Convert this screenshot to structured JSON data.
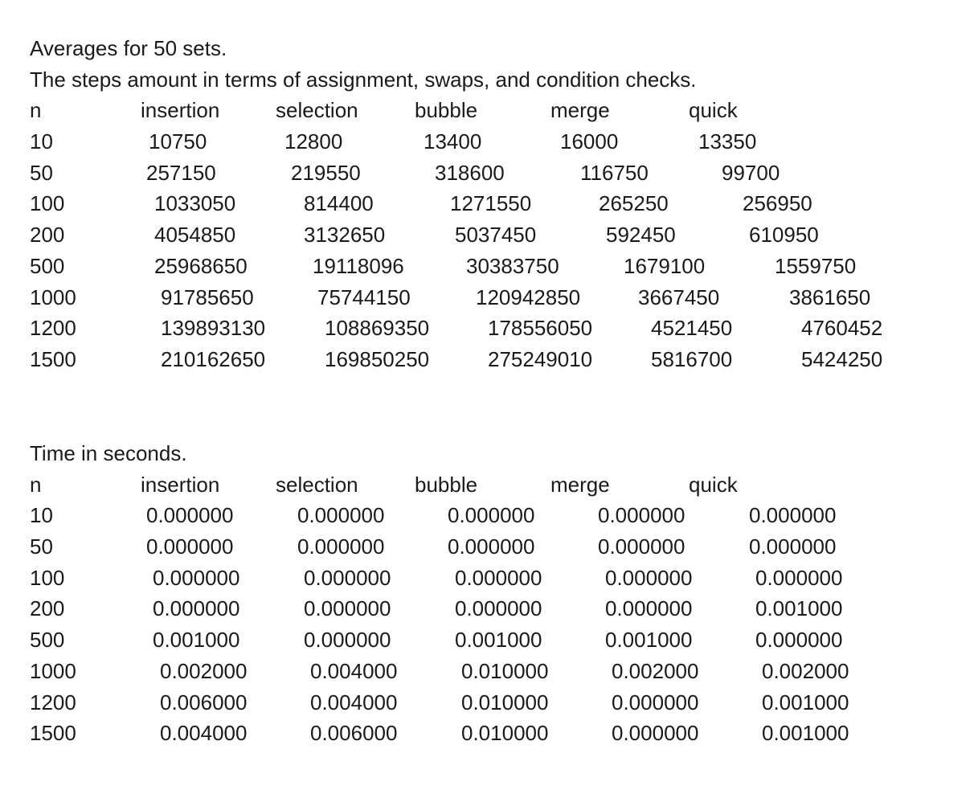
{
  "steps": {
    "title": "Averages for 50 sets.",
    "subtitle": "The steps amount in terms of assignment, swaps, and condition checks.",
    "headers": [
      "n",
      "insertion",
      "selection",
      "bubble",
      "merge",
      "quick"
    ],
    "rows": [
      [
        "10",
        "10750",
        "12800",
        "13400",
        "16000",
        "13350"
      ],
      [
        "50",
        "257150",
        "219550",
        "318600",
        "116750",
        "99700"
      ],
      [
        "100",
        "1033050",
        "814400",
        "1271550",
        "265250",
        "256950"
      ],
      [
        "200",
        "4054850",
        "3132650",
        "5037450",
        "592450",
        "610950"
      ],
      [
        "500",
        "25968650",
        "19118096",
        "30383750",
        "1679100",
        "1559750"
      ],
      [
        "1000",
        "91785650",
        "75744150",
        "120942850",
        "3667450",
        "3861650"
      ],
      [
        "1200",
        "139893130",
        "108869350",
        "178556050",
        "4521450",
        "4760452"
      ],
      [
        "1500",
        "210162650",
        "169850250",
        "275249010",
        "5816700",
        "5424250"
      ]
    ]
  },
  "time": {
    "title": "Time in seconds.",
    "headers": [
      "n",
      "insertion",
      "selection",
      "bubble",
      "merge",
      "quick"
    ],
    "rows": [
      [
        "10",
        "0.000000",
        "0.000000",
        "0.000000",
        "0.000000",
        "0.000000"
      ],
      [
        "50",
        "0.000000",
        "0.000000",
        "0.000000",
        "0.000000",
        "0.000000"
      ],
      [
        "100",
        "0.000000",
        "0.000000",
        "0.000000",
        "0.000000",
        "0.000000"
      ],
      [
        "200",
        "0.000000",
        "0.000000",
        "0.000000",
        "0.000000",
        "0.001000"
      ],
      [
        "500",
        "0.001000",
        "0.000000",
        "0.001000",
        "0.001000",
        "0.000000"
      ],
      [
        "1000",
        "0.002000",
        "0.004000",
        "0.010000",
        "0.002000",
        "0.002000"
      ],
      [
        "1200",
        "0.006000",
        "0.004000",
        "0.010000",
        "0.000000",
        "0.001000"
      ],
      [
        "1500",
        "0.004000",
        "0.006000",
        "0.010000",
        "0.000000",
        "0.001000"
      ]
    ]
  }
}
